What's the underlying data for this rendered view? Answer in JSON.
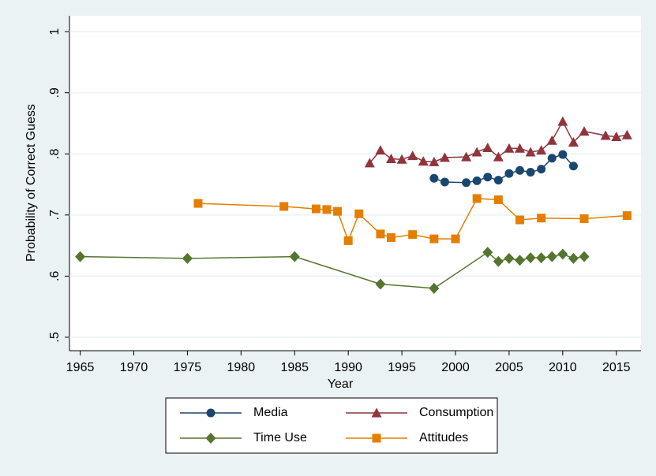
{
  "chart_data": {
    "type": "line",
    "x_label": "Year",
    "y_label": "Probability of Correct Guess",
    "xlim": [
      1964,
      2017.3
    ],
    "ylim": [
      0.478,
      1.026
    ],
    "xticks": [
      1965,
      1970,
      1975,
      1980,
      1985,
      1990,
      1995,
      2000,
      2005,
      2010,
      2015
    ],
    "yticks": [
      {
        "value": 0.5,
        "label": ".5"
      },
      {
        "value": 0.6,
        "label": ".6"
      },
      {
        "value": 0.7,
        "label": ".7"
      },
      {
        "value": 0.8,
        "label": ".8"
      },
      {
        "value": 0.9,
        "label": ".9"
      },
      1
    ],
    "grid": true,
    "legend": "bottom",
    "series": [
      {
        "name": "Media",
        "color": "#1a476f",
        "marker": "circle",
        "x": [
          1998,
          1999,
          2001,
          2002,
          2003,
          2004,
          2005,
          2006,
          2007,
          2008,
          2009,
          2010,
          2011
        ],
        "values": [
          0.76,
          0.754,
          0.753,
          0.756,
          0.762,
          0.757,
          0.768,
          0.773,
          0.77,
          0.775,
          0.793,
          0.799,
          0.78
        ]
      },
      {
        "name": "Consumption",
        "color": "#90353b",
        "marker": "triangle",
        "x": [
          1992,
          1993,
          1994,
          1995,
          1996,
          1997,
          1998,
          1999,
          2001,
          2002,
          2003,
          2004,
          2005,
          2006,
          2007,
          2008,
          2009,
          2010,
          2011,
          2012,
          2014,
          2015,
          2016
        ],
        "values": [
          0.785,
          0.806,
          0.792,
          0.791,
          0.797,
          0.788,
          0.787,
          0.794,
          0.795,
          0.803,
          0.81,
          0.795,
          0.809,
          0.809,
          0.803,
          0.806,
          0.822,
          0.853,
          0.819,
          0.837,
          0.83,
          0.828,
          0.831
        ]
      },
      {
        "name": "Time Use",
        "color": "#55752f",
        "marker": "diamond",
        "x": [
          1965,
          1975,
          1985,
          1993,
          1998,
          2003,
          2004,
          2005,
          2006,
          2007,
          2008,
          2009,
          2010,
          2011,
          2012
        ],
        "values": [
          0.632,
          0.629,
          0.632,
          0.587,
          0.58,
          0.639,
          0.624,
          0.629,
          0.626,
          0.63,
          0.63,
          0.632,
          0.636,
          0.629,
          0.632
        ]
      },
      {
        "name": "Attitudes",
        "color": "#e37e00",
        "marker": "square",
        "x": [
          1976,
          1984,
          1987,
          1988,
          1989,
          1990,
          1991,
          1993,
          1994,
          1996,
          1998,
          2000,
          2002,
          2004,
          2006,
          2008,
          2012,
          2016
        ],
        "values": [
          0.719,
          0.714,
          0.71,
          0.709,
          0.706,
          0.658,
          0.702,
          0.669,
          0.663,
          0.668,
          0.661,
          0.661,
          0.727,
          0.725,
          0.692,
          0.695,
          0.694,
          0.699
        ]
      }
    ]
  }
}
